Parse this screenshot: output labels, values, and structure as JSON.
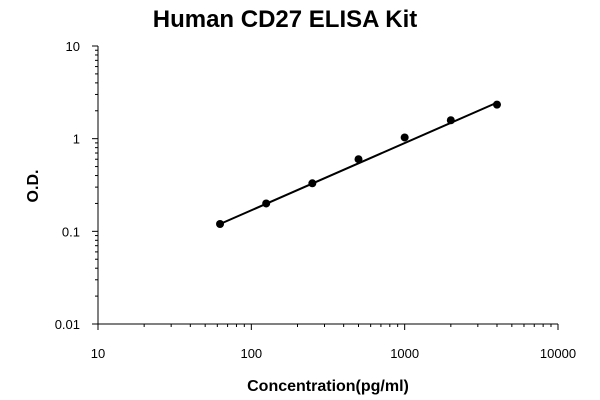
{
  "chart_data": {
    "type": "scatter",
    "title": "Human CD27 ELISA Kit",
    "xlabel": "Concentration(pg/ml)",
    "ylabel": "O.D.",
    "x_scale": "log",
    "y_scale": "log",
    "xlim": [
      10,
      10000
    ],
    "ylim": [
      0.01,
      10
    ],
    "x_ticks": [
      10,
      100,
      1000,
      10000
    ],
    "x_tick_labels": [
      "10",
      "100",
      "1000",
      "10000"
    ],
    "y_ticks": [
      0.01,
      0.1,
      1,
      10
    ],
    "y_tick_labels": [
      "0.01",
      "0.1",
      "1",
      "10"
    ],
    "grid": false,
    "series": [
      {
        "x": [
          62.5,
          125,
          250,
          500,
          1000,
          2000,
          4000
        ],
        "y": [
          0.12,
          0.2,
          0.33,
          0.6,
          1.03,
          1.58,
          2.33
        ],
        "marker": "circle",
        "color": "#000000"
      }
    ],
    "fit_line": {
      "x": [
        62.5,
        4000
      ],
      "y": [
        0.12,
        2.45
      ],
      "color": "#000000"
    }
  }
}
